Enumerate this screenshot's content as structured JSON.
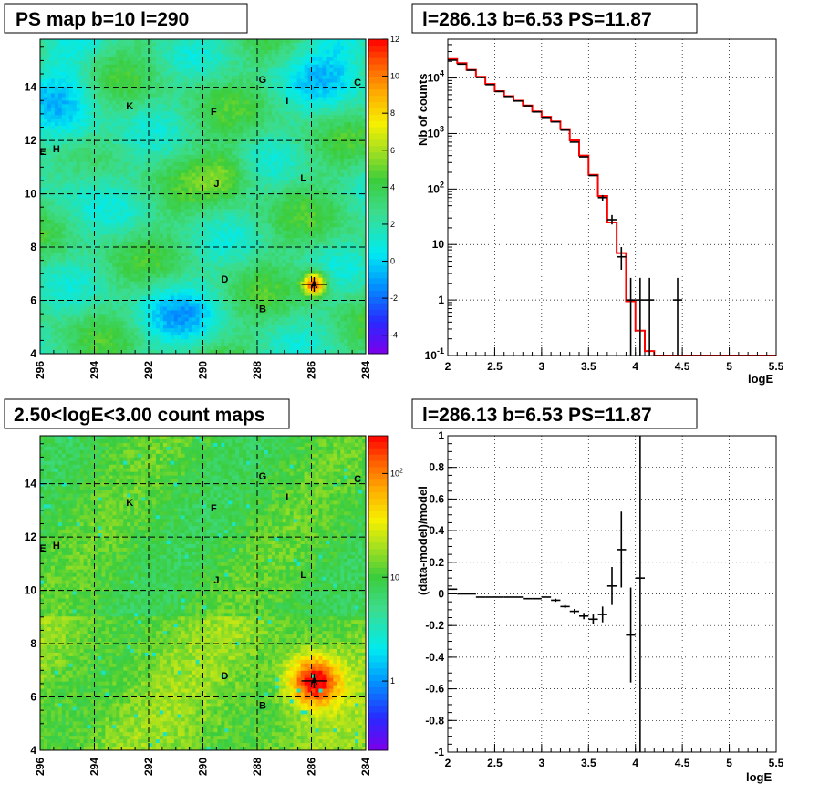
{
  "chart_data": [
    {
      "type": "heatmap",
      "title": "PS map b=10 l=290",
      "x_ticks": [
        "296",
        "294",
        "292",
        "290",
        "288",
        "286",
        "284"
      ],
      "y_ticks": [
        "4",
        "6",
        "8",
        "10",
        "12",
        "14"
      ],
      "xlim": [
        296,
        284
      ],
      "ylim": [
        4,
        15.8
      ],
      "colorbar_ticks": [
        "12",
        "10",
        "8",
        "6",
        "4",
        "2",
        "0",
        "-2",
        "-4"
      ],
      "colorbar_range": [
        -5,
        12
      ],
      "sources": [
        {
          "name": "A",
          "l": 285.9,
          "b": 6.6
        },
        {
          "name": "B",
          "l": 287.8,
          "b": 5.7
        },
        {
          "name": "C",
          "l": 284.3,
          "b": 14.2
        },
        {
          "name": "D",
          "l": 289.2,
          "b": 6.8
        },
        {
          "name": "E",
          "l": 295.9,
          "b": 11.6
        },
        {
          "name": "F",
          "l": 289.6,
          "b": 13.1
        },
        {
          "name": "G",
          "l": 287.8,
          "b": 14.3
        },
        {
          "name": "H",
          "l": 295.4,
          "b": 11.7
        },
        {
          "name": "I",
          "l": 286.9,
          "b": 13.5
        },
        {
          "name": "J",
          "l": 289.5,
          "b": 10.4
        },
        {
          "name": "K",
          "l": 292.7,
          "b": 13.3
        },
        {
          "name": "L",
          "l": 286.3,
          "b": 10.6
        }
      ]
    },
    {
      "type": "line",
      "title": "l=286.13 b=6.53 PS=11.87",
      "xlabel": "logE",
      "ylabel": "Nb of counts",
      "xlim": [
        2,
        5.5
      ],
      "ylim": [
        0.1,
        50000
      ],
      "yscale": "log",
      "grid": true,
      "x_ticks": [
        "2",
        "2.5",
        "3",
        "3.5",
        "4",
        "4.5",
        "5",
        "5.5"
      ],
      "y_ticks": [
        "10^-1",
        "1",
        "10",
        "10^2",
        "10^3",
        "10^4"
      ],
      "series": [
        {
          "type": "step",
          "color": "#ff0000",
          "edges": [
            2,
            2.1,
            2.2,
            2.3,
            2.4,
            2.5,
            2.6,
            2.7,
            2.8,
            2.9,
            3.0,
            3.1,
            3.2,
            3.3,
            3.4,
            3.5,
            3.6,
            3.7,
            3.8,
            3.9,
            4.0,
            4.1,
            4.2,
            4.3,
            4.4,
            4.5,
            4.6,
            4.7,
            4.8,
            4.9,
            5.0,
            5.1,
            5.2,
            5.3,
            5.4,
            5.5
          ],
          "values": [
            22000,
            18500,
            14000,
            10500,
            7800,
            5800,
            4700,
            3900,
            3200,
            2500,
            2000,
            1650,
            1200,
            750,
            400,
            180,
            75,
            25,
            7,
            0.95,
            0.28,
            0.12,
            0.1,
            0.1,
            0.1,
            0.1,
            0.1,
            0.1,
            0.1,
            0.1,
            0.1,
            0.1,
            0.1,
            0.1,
            0.1
          ]
        },
        {
          "type": "errorbar",
          "color": "#000000",
          "x": [
            2.05,
            2.15,
            2.25,
            2.35,
            2.45,
            2.55,
            2.65,
            2.75,
            2.85,
            2.95,
            3.05,
            3.15,
            3.25,
            3.35,
            3.45,
            3.55,
            3.65,
            3.75,
            3.85,
            3.95,
            4.05,
            4.15,
            4.45
          ],
          "y": [
            21000,
            17800,
            13800,
            10200,
            7600,
            5700,
            4650,
            3850,
            3150,
            2450,
            1950,
            1620,
            1150,
            700,
            380,
            175,
            70,
            28,
            6,
            1,
            1,
            1,
            1
          ],
          "yerr_low": [
            0,
            0,
            0,
            0,
            0,
            0,
            0,
            0,
            0,
            0,
            0,
            0,
            0,
            0,
            0,
            0,
            8,
            5,
            2.5,
            0.9,
            0.9,
            0.9,
            0.9
          ],
          "yerr_high": [
            0,
            0,
            0,
            0,
            0,
            0,
            0,
            0,
            0,
            0,
            0,
            0,
            0,
            0,
            0,
            0,
            8,
            6,
            3,
            1.5,
            1.5,
            1.5,
            1.5
          ]
        }
      ]
    },
    {
      "type": "heatmap",
      "title": "2.50<logE<3.00 count maps",
      "x_ticks": [
        "296",
        "294",
        "292",
        "290",
        "288",
        "286",
        "284"
      ],
      "y_ticks": [
        "4",
        "6",
        "8",
        "10",
        "12",
        "14"
      ],
      "xlim": [
        296,
        284
      ],
      "ylim": [
        4,
        15.8
      ],
      "colorbar_ticks": [
        "10^2",
        "10",
        "1"
      ],
      "colorbar_scale": "log",
      "sources": [
        {
          "name": "A",
          "l": 285.9,
          "b": 6.6
        },
        {
          "name": "B",
          "l": 287.8,
          "b": 5.7
        },
        {
          "name": "C",
          "l": 284.3,
          "b": 14.2
        },
        {
          "name": "D",
          "l": 289.2,
          "b": 6.8
        },
        {
          "name": "E",
          "l": 295.9,
          "b": 11.6
        },
        {
          "name": "F",
          "l": 289.6,
          "b": 13.1
        },
        {
          "name": "G",
          "l": 287.8,
          "b": 14.3
        },
        {
          "name": "H",
          "l": 295.4,
          "b": 11.7
        },
        {
          "name": "I",
          "l": 286.9,
          "b": 13.5
        },
        {
          "name": "J",
          "l": 289.5,
          "b": 10.4
        },
        {
          "name": "K",
          "l": 292.7,
          "b": 13.3
        },
        {
          "name": "L",
          "l": 286.3,
          "b": 10.6
        }
      ]
    },
    {
      "type": "scatter",
      "title": "l=286.13 b=6.53 PS=11.87",
      "xlabel": "logE",
      "ylabel": "(data-model)/model",
      "xlim": [
        2,
        5.5
      ],
      "ylim": [
        -1,
        1
      ],
      "grid": true,
      "x_ticks": [
        "2",
        "2.5",
        "3",
        "3.5",
        "4",
        "4.5",
        "5",
        "5.5"
      ],
      "y_ticks": [
        "-1",
        "-0.8",
        "-0.6",
        "-0.4",
        "-0.2",
        "0",
        "0.2",
        "0.4",
        "0.6",
        "0.8",
        "1"
      ],
      "series": [
        {
          "type": "errorbar",
          "color": "#000000",
          "x": [
            2.05,
            2.15,
            2.25,
            2.35,
            2.45,
            2.55,
            2.65,
            2.75,
            2.85,
            2.95,
            3.05,
            3.15,
            3.25,
            3.35,
            3.45,
            3.55,
            3.65,
            3.75,
            3.85,
            3.95,
            4.05
          ],
          "y": [
            0.03,
            0,
            0,
            -0.02,
            -0.02,
            -0.02,
            -0.02,
            -0.02,
            -0.03,
            -0.03,
            -0.02,
            -0.04,
            -0.08,
            -0.11,
            -0.14,
            -0.16,
            -0.13,
            0.05,
            0.28,
            -0.26,
            0.1
          ],
          "yerr": [
            0,
            0,
            0,
            0,
            0,
            0,
            0,
            0,
            0,
            0,
            0,
            0.01,
            0.01,
            0.015,
            0.02,
            0.03,
            0.05,
            0.12,
            0.24,
            0.3,
            1.1
          ]
        }
      ]
    }
  ]
}
